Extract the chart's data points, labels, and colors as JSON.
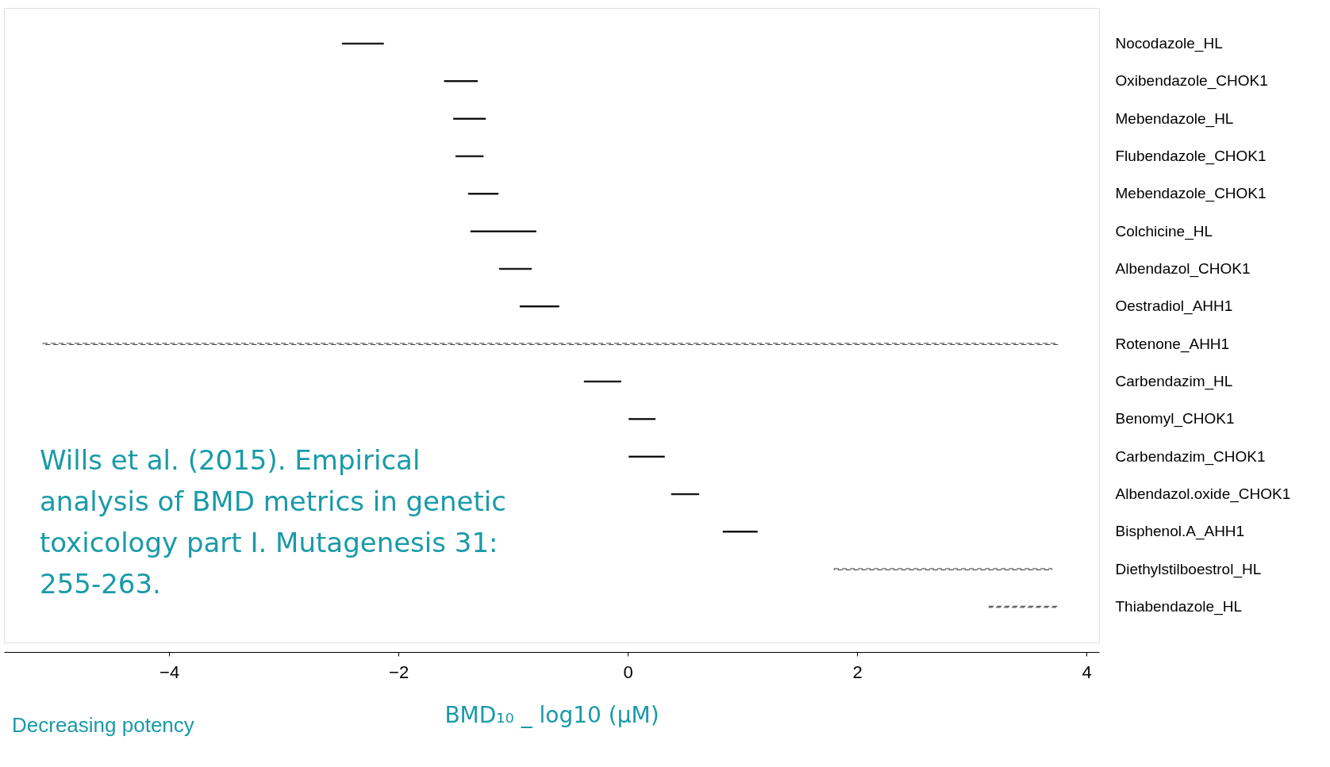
{
  "chart_data": {
    "type": "bar",
    "orientation": "horizontal",
    "categories": [
      "Nocodazole_HL",
      "Oxibendazole_CHOK1",
      "Mebendazole_HL",
      "Flubendazole_CHOK1",
      "Mebendazole_CHOK1",
      "Colchicine_HL",
      "Albendazol_CHOK1",
      "Oestradiol_AHH1",
      "Rotenone_AHH1",
      "Carbendazim_HL",
      "Benomyl_CHOK1",
      "Carbendazim_CHOK1",
      "Albendazol.oxide_CHOK1",
      "Bisphenol.A_AHH1",
      "Diethylstilboestrol_HL",
      "Thiabendazole_HL"
    ],
    "series": [
      {
        "color": "#000000",
        "line_style": "solid",
        "base": [
          -2.49,
          -1.6,
          -1.52,
          -1.5,
          -1.39,
          -1.37,
          -1.12,
          -0.94,
          null,
          -0.38,
          0.01,
          0.01,
          0.38,
          0.83,
          null,
          null
        ],
        "values": [
          0.36,
          0.29,
          0.28,
          0.24,
          0.26,
          0.57,
          0.28,
          0.34,
          null,
          0.32,
          0.23,
          0.31,
          0.24,
          0.3,
          null,
          null
        ]
      },
      {
        "color": "#000000",
        "line_style": "dashed",
        "base": [
          null,
          null,
          null,
          null,
          null,
          null,
          null,
          null,
          -5.1,
          null,
          null,
          null,
          null,
          null,
          1.8,
          3.15
        ],
        "values": [
          null,
          null,
          null,
          null,
          null,
          null,
          null,
          null,
          8.85,
          null,
          null,
          null,
          null,
          null,
          1.9,
          0.6
        ]
      }
    ],
    "xlim": [
      -5.44,
      4.11
    ],
    "xticks": [
      -4,
      -2,
      0,
      2,
      4
    ],
    "xlabel": "BMD₁₀ _ log10 (µM)",
    "grid": false,
    "legend": false,
    "annotations": [
      "Wills et al. (2015). Empirical analysis of BMD metrics in genetic toxicology part I. Mutagenesis 31: 255-263.",
      "Decreasing potency"
    ]
  }
}
